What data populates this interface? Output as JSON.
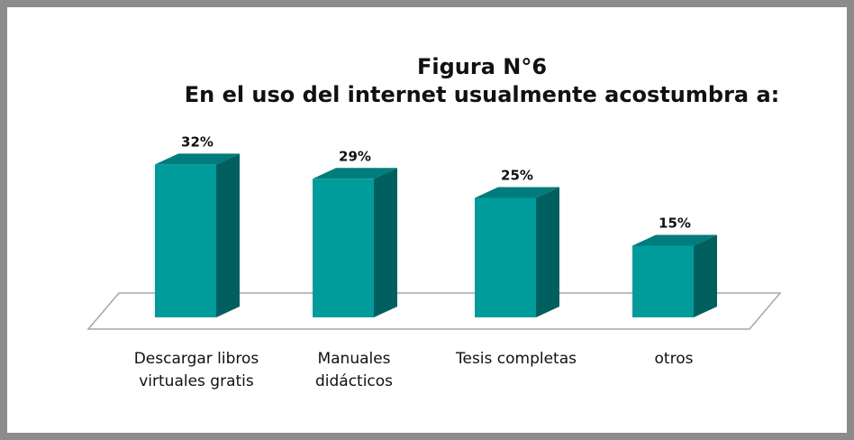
{
  "chart_data": {
    "type": "bar3d",
    "title": "Figura N°6",
    "subtitle": "En el uso del internet usualmente acostumbra a:",
    "categories": [
      "Descargar libros virtuales gratis",
      "Manuales didácticos",
      "Tesis completas",
      "otros"
    ],
    "values": [
      32,
      29,
      25,
      15
    ],
    "value_labels": [
      "32%",
      "29%",
      "25%",
      "15%"
    ],
    "color": "#009b9b"
  }
}
